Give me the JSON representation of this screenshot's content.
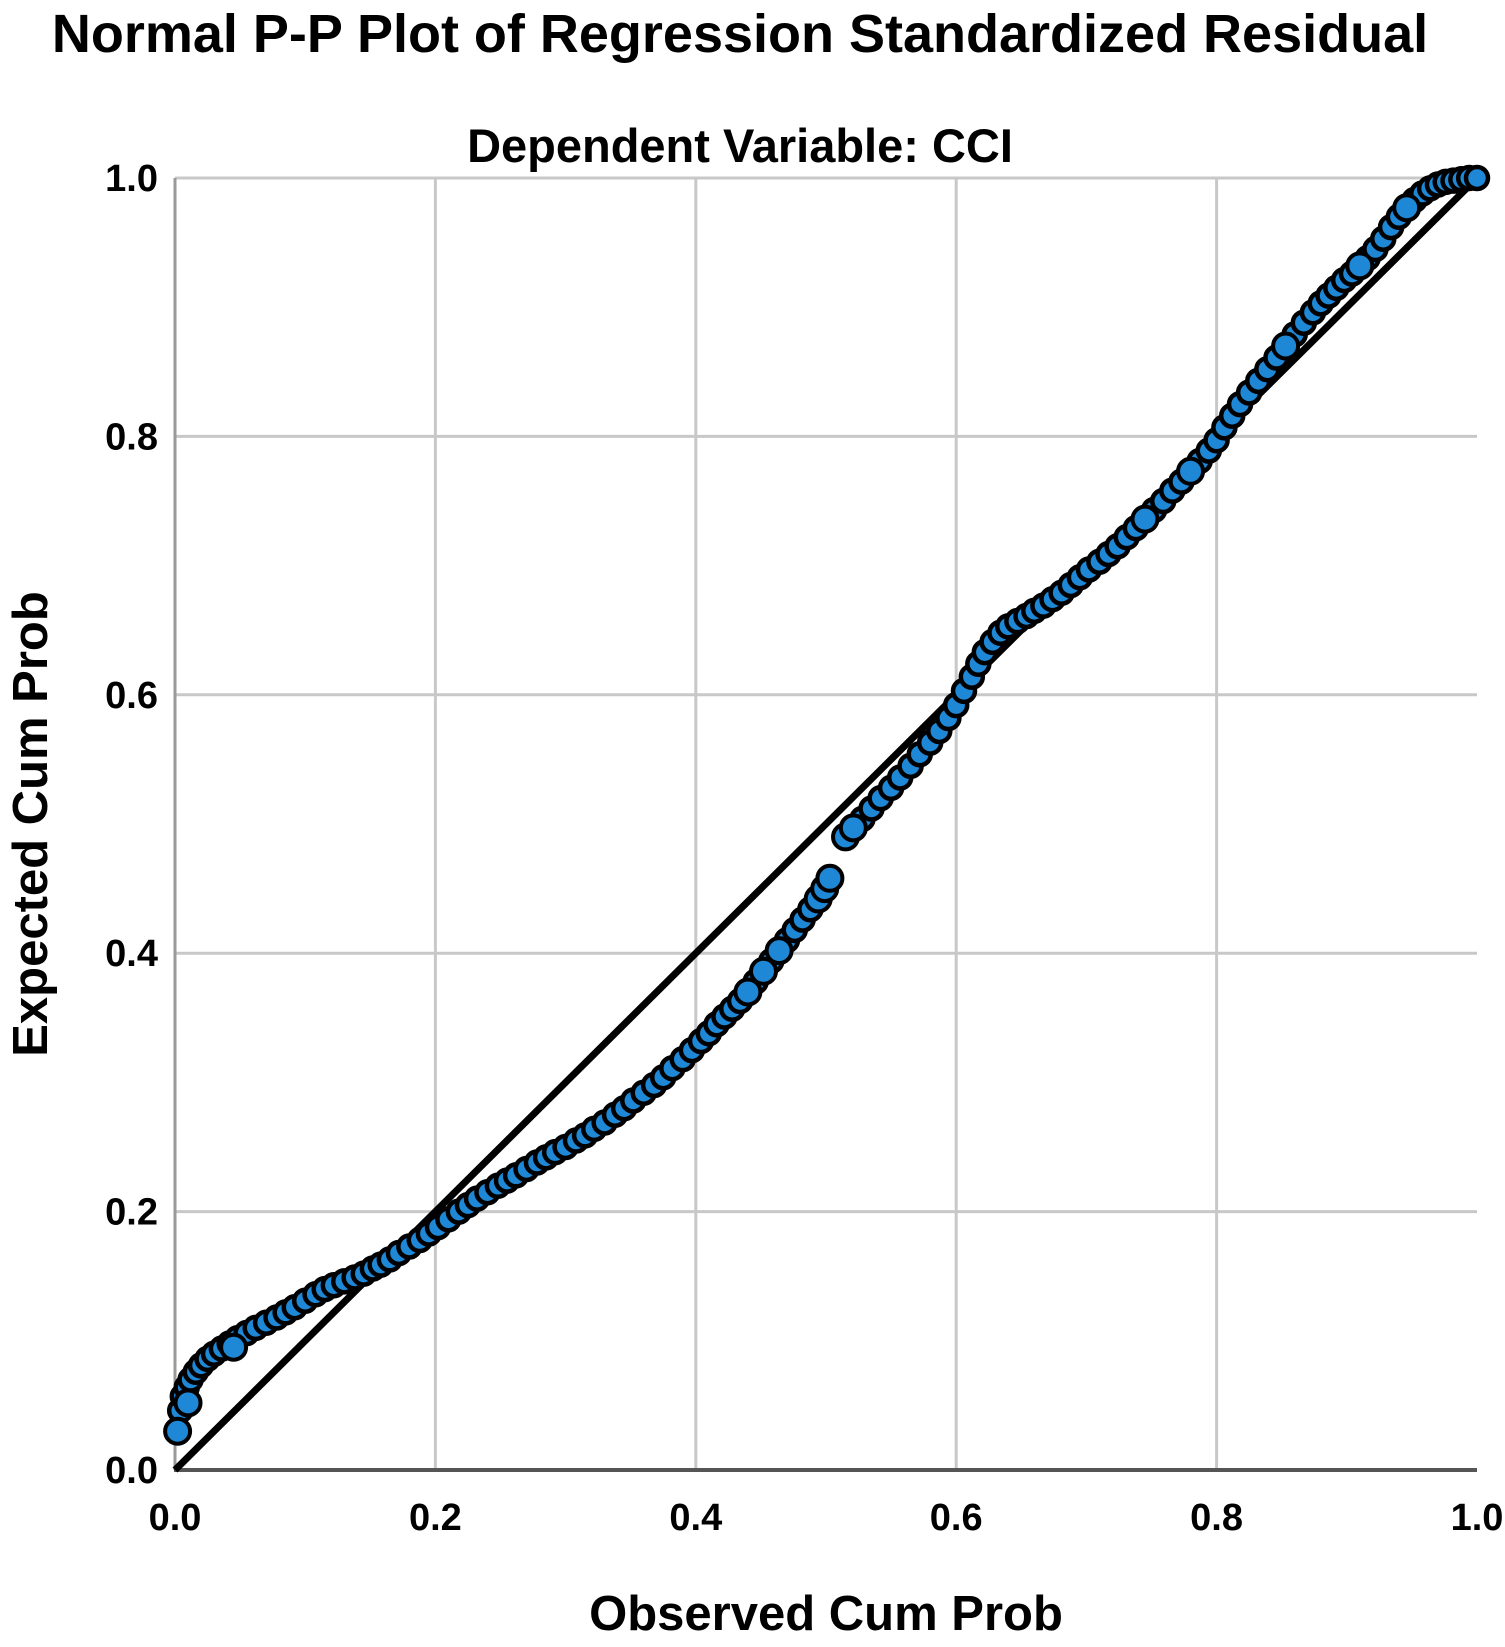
{
  "chart_data": {
    "type": "scatter",
    "title": "Normal P-P Plot of Regression Standardized Residual",
    "subtitle": "Dependent Variable: CCI",
    "xlabel": "Observed Cum Prob",
    "ylabel": "Expected Cum Prob",
    "xlim": [
      0.0,
      1.0
    ],
    "ylim": [
      0.0,
      1.0
    ],
    "x_ticks": [
      0.0,
      0.2,
      0.4,
      0.6,
      0.8,
      1.0
    ],
    "y_ticks": [
      0.0,
      0.2,
      0.4,
      0.6,
      0.8,
      1.0
    ],
    "grid": true,
    "legend_position": "none",
    "reference_line": {
      "from": [
        0.0,
        0.0
      ],
      "to": [
        1.0,
        1.0
      ]
    },
    "series": [
      {
        "name": "regression-standardized-residual",
        "points": [
          [
            0.002,
            0.03
          ],
          [
            0.004,
            0.046
          ],
          [
            0.006,
            0.057
          ],
          [
            0.009,
            0.064
          ],
          [
            0.012,
            0.07
          ],
          [
            0.016,
            0.076
          ],
          [
            0.02,
            0.081
          ],
          [
            0.025,
            0.086
          ],
          [
            0.03,
            0.09
          ],
          [
            0.036,
            0.094
          ],
          [
            0.042,
            0.098
          ],
          [
            0.048,
            0.102
          ],
          [
            0.055,
            0.106
          ],
          [
            0.062,
            0.11
          ],
          [
            0.07,
            0.114
          ],
          [
            0.078,
            0.118
          ],
          [
            0.085,
            0.122
          ],
          [
            0.092,
            0.126
          ],
          [
            0.1,
            0.131
          ],
          [
            0.108,
            0.136
          ],
          [
            0.115,
            0.14
          ],
          [
            0.122,
            0.143
          ],
          [
            0.13,
            0.146
          ],
          [
            0.138,
            0.149
          ],
          [
            0.145,
            0.152
          ],
          [
            0.152,
            0.156
          ],
          [
            0.158,
            0.159
          ],
          [
            0.165,
            0.163
          ],
          [
            0.172,
            0.168
          ],
          [
            0.18,
            0.173
          ],
          [
            0.188,
            0.178
          ],
          [
            0.195,
            0.183
          ],
          [
            0.202,
            0.188
          ],
          [
            0.21,
            0.194
          ],
          [
            0.218,
            0.2
          ],
          [
            0.225,
            0.205
          ],
          [
            0.232,
            0.21
          ],
          [
            0.24,
            0.215
          ],
          [
            0.248,
            0.22
          ],
          [
            0.255,
            0.224
          ],
          [
            0.262,
            0.228
          ],
          [
            0.27,
            0.233
          ],
          [
            0.278,
            0.238
          ],
          [
            0.285,
            0.242
          ],
          [
            0.292,
            0.246
          ],
          [
            0.3,
            0.25
          ],
          [
            0.308,
            0.255
          ],
          [
            0.315,
            0.259
          ],
          [
            0.322,
            0.264
          ],
          [
            0.33,
            0.269
          ],
          [
            0.338,
            0.275
          ],
          [
            0.345,
            0.28
          ],
          [
            0.352,
            0.286
          ],
          [
            0.36,
            0.292
          ],
          [
            0.368,
            0.298
          ],
          [
            0.375,
            0.304
          ],
          [
            0.382,
            0.311
          ],
          [
            0.39,
            0.318
          ],
          [
            0.397,
            0.325
          ],
          [
            0.404,
            0.332
          ],
          [
            0.41,
            0.338
          ],
          [
            0.416,
            0.345
          ],
          [
            0.422,
            0.351
          ],
          [
            0.428,
            0.357
          ],
          [
            0.434,
            0.363
          ],
          [
            0.44,
            0.37
          ],
          [
            0.446,
            0.378
          ],
          [
            0.452,
            0.386
          ],
          [
            0.458,
            0.394
          ],
          [
            0.464,
            0.402
          ],
          [
            0.47,
            0.41
          ],
          [
            0.476,
            0.418
          ],
          [
            0.482,
            0.426
          ],
          [
            0.488,
            0.434
          ],
          [
            0.494,
            0.442
          ],
          [
            0.499,
            0.45
          ],
          [
            0.503,
            0.458
          ],
          [
            0.515,
            0.49
          ],
          [
            0.521,
            0.497
          ],
          [
            0.528,
            0.504
          ],
          [
            0.535,
            0.512
          ],
          [
            0.542,
            0.52
          ],
          [
            0.55,
            0.528
          ],
          [
            0.557,
            0.536
          ],
          [
            0.565,
            0.545
          ],
          [
            0.572,
            0.554
          ],
          [
            0.58,
            0.563
          ],
          [
            0.587,
            0.572
          ],
          [
            0.594,
            0.582
          ],
          [
            0.6,
            0.592
          ],
          [
            0.606,
            0.603
          ],
          [
            0.612,
            0.614
          ],
          [
            0.617,
            0.624
          ],
          [
            0.622,
            0.633
          ],
          [
            0.628,
            0.641
          ],
          [
            0.634,
            0.648
          ],
          [
            0.64,
            0.653
          ],
          [
            0.647,
            0.657
          ],
          [
            0.654,
            0.661
          ],
          [
            0.66,
            0.665
          ],
          [
            0.667,
            0.669
          ],
          [
            0.674,
            0.674
          ],
          [
            0.681,
            0.679
          ],
          [
            0.688,
            0.685
          ],
          [
            0.695,
            0.691
          ],
          [
            0.702,
            0.697
          ],
          [
            0.71,
            0.703
          ],
          [
            0.717,
            0.709
          ],
          [
            0.724,
            0.715
          ],
          [
            0.731,
            0.722
          ],
          [
            0.738,
            0.729
          ],
          [
            0.745,
            0.736
          ],
          [
            0.752,
            0.743
          ],
          [
            0.759,
            0.75
          ],
          [
            0.766,
            0.758
          ],
          [
            0.773,
            0.765
          ],
          [
            0.78,
            0.773
          ],
          [
            0.787,
            0.781
          ],
          [
            0.794,
            0.789
          ],
          [
            0.8,
            0.797
          ],
          [
            0.806,
            0.807
          ],
          [
            0.812,
            0.816
          ],
          [
            0.818,
            0.825
          ],
          [
            0.825,
            0.834
          ],
          [
            0.832,
            0.843
          ],
          [
            0.839,
            0.852
          ],
          [
            0.846,
            0.861
          ],
          [
            0.853,
            0.87
          ],
          [
            0.86,
            0.879
          ],
          [
            0.867,
            0.888
          ],
          [
            0.874,
            0.896
          ],
          [
            0.88,
            0.903
          ],
          [
            0.886,
            0.909
          ],
          [
            0.892,
            0.915
          ],
          [
            0.898,
            0.921
          ],
          [
            0.904,
            0.926
          ],
          [
            0.91,
            0.932
          ],
          [
            0.916,
            0.938
          ],
          [
            0.922,
            0.945
          ],
          [
            0.928,
            0.953
          ],
          [
            0.934,
            0.962
          ],
          [
            0.94,
            0.97
          ],
          [
            0.946,
            0.977
          ],
          [
            0.952,
            0.983
          ],
          [
            0.958,
            0.988
          ],
          [
            0.964,
            0.992
          ],
          [
            0.97,
            0.995
          ],
          [
            0.976,
            0.997
          ],
          [
            0.982,
            0.998
          ],
          [
            0.988,
            0.999
          ],
          [
            0.994,
            1.0
          ],
          [
            1.0,
            1.0
          ]
        ]
      }
    ],
    "emphasis_points": [
      [
        0.002,
        0.03
      ],
      [
        0.01,
        0.052
      ],
      [
        0.045,
        0.095
      ],
      [
        0.44,
        0.37
      ],
      [
        0.452,
        0.386
      ],
      [
        0.464,
        0.402
      ],
      [
        0.494,
        0.442
      ],
      [
        0.499,
        0.45
      ],
      [
        0.503,
        0.458
      ],
      [
        0.515,
        0.49
      ],
      [
        0.521,
        0.497
      ],
      [
        0.745,
        0.736
      ],
      [
        0.78,
        0.773
      ],
      [
        0.853,
        0.87
      ],
      [
        0.91,
        0.932
      ],
      [
        0.946,
        0.977
      ]
    ],
    "colors": {
      "marker_fill": "#1E87D6",
      "marker_stroke": "#000000",
      "reference_line": "#000000",
      "grid": "#C8C8C8",
      "axis_left": "#9A9A9A",
      "axis_bottom": "#555555",
      "text": "#000000",
      "background": "#FFFFFF"
    },
    "marker": {
      "radius": 11,
      "stroke_width": 4.5,
      "emphasis_radius": 12.5
    }
  }
}
